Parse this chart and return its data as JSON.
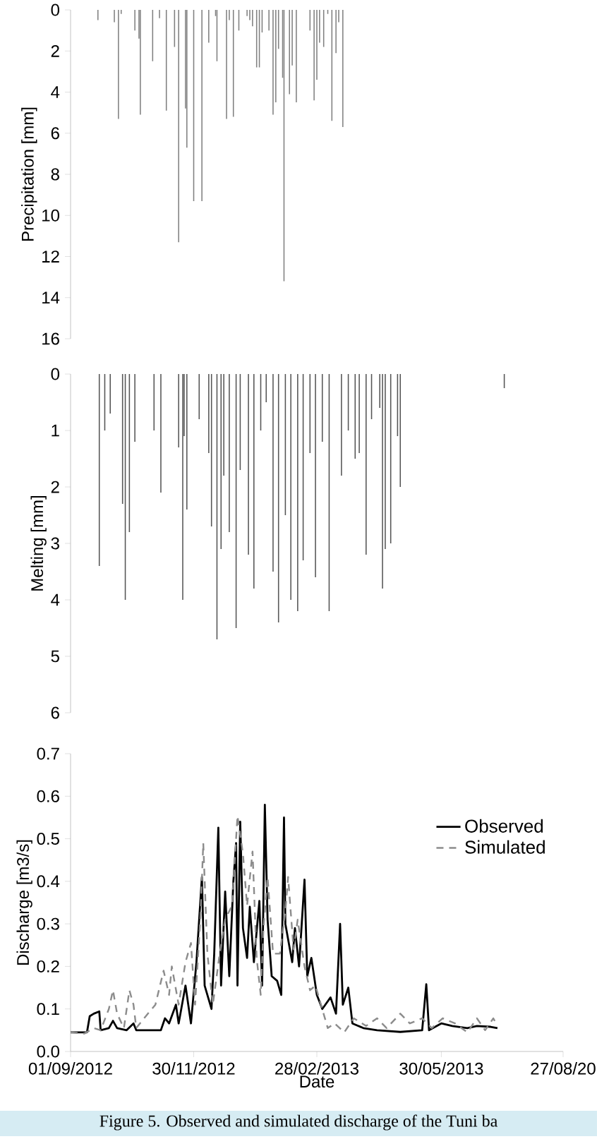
{
  "chart_data": [
    {
      "type": "bar",
      "ylabel": "Precipitation [mm]",
      "color": "#808080",
      "ylim": [
        16,
        0
      ],
      "yticks": [
        0,
        2,
        4,
        6,
        8,
        10,
        12,
        14,
        16
      ],
      "xlim": [
        "2012-09-01",
        "2013-08-27"
      ],
      "tick_labels": "y",
      "x": [
        "2012-09-21",
        "2012-10-03",
        "2012-10-06",
        "2012-10-08",
        "2012-10-18",
        "2012-10-21",
        "2012-10-22",
        "2012-10-31",
        "2012-11-05",
        "2012-11-10",
        "2012-11-16",
        "2012-11-19",
        "2012-11-24",
        "2012-11-25",
        "2012-11-30",
        "2012-12-06",
        "2012-12-11",
        "2012-12-16",
        "2012-12-17",
        "2012-12-24",
        "2012-12-26",
        "2012-12-29",
        "2013-01-02",
        "2013-01-08",
        "2013-01-10",
        "2013-01-12",
        "2013-01-15",
        "2013-01-17",
        "2013-01-19",
        "2013-01-24",
        "2013-01-27",
        "2013-01-29",
        "2013-01-31",
        "2013-02-03",
        "2013-02-04",
        "2013-02-08",
        "2013-02-10",
        "2013-02-13",
        "2013-02-23",
        "2013-02-26",
        "2013-02-28",
        "2013-03-02",
        "2013-03-05",
        "2013-03-08",
        "2013-03-11",
        "2013-03-14",
        "2013-03-16",
        "2013-03-19"
      ],
      "values": [
        0.5,
        0.6,
        5.3,
        0.2,
        1.0,
        1.4,
        5.1,
        2.5,
        0.4,
        4.9,
        1.8,
        11.3,
        4.8,
        6.7,
        9.3,
        9.3,
        1.6,
        0.3,
        2.5,
        5.3,
        0.5,
        5.2,
        1.0,
        0.3,
        0.5,
        0.8,
        2.8,
        2.8,
        1.1,
        1.0,
        5.1,
        4.5,
        1.9,
        3.3,
        13.2,
        4.1,
        2.7,
        4.5,
        1.0,
        4.4,
        3.4,
        1.6,
        1.8,
        0.2,
        5.4,
        2.1,
        0.6,
        5.7
      ]
    },
    {
      "type": "bar",
      "ylabel": "Melting [mm]",
      "color": "#555555",
      "ylim": [
        6,
        0
      ],
      "yticks": [
        0,
        1,
        2,
        3,
        4,
        5,
        6
      ],
      "xlim": [
        "2012-09-01",
        "2013-08-27"
      ],
      "tick_labels": "y",
      "x": [
        "2012-09-22",
        "2012-09-26",
        "2012-09-30",
        "2012-10-09",
        "2012-10-11",
        "2012-10-14",
        "2012-10-18",
        "2012-11-01",
        "2012-11-06",
        "2012-11-19",
        "2012-11-22",
        "2012-11-23",
        "2012-11-25",
        "2012-12-04",
        "2012-12-11",
        "2012-12-13",
        "2012-12-17",
        "2012-12-20",
        "2012-12-22",
        "2012-12-26",
        "2012-12-31",
        "2013-01-03",
        "2013-01-09",
        "2013-01-13",
        "2013-01-18",
        "2013-01-22",
        "2013-01-27",
        "2013-01-31",
        "2013-02-05",
        "2013-02-09",
        "2013-02-14",
        "2013-02-18",
        "2013-02-23",
        "2013-02-27",
        "2013-03-04",
        "2013-03-09",
        "2013-03-18",
        "2013-03-23",
        "2013-03-28",
        "2013-03-31",
        "2013-04-05",
        "2013-04-09",
        "2013-04-15",
        "2013-04-17",
        "2013-04-19",
        "2013-04-23",
        "2013-04-28",
        "2013-04-30",
        "2013-07-15"
      ],
      "values": [
        3.4,
        1.0,
        0.7,
        2.3,
        4.0,
        2.8,
        1.2,
        1.0,
        2.1,
        1.3,
        4.0,
        1.1,
        2.4,
        0.8,
        1.4,
        2.7,
        4.7,
        3.1,
        1.8,
        2.8,
        4.5,
        1.7,
        3.2,
        3.8,
        1.0,
        0.5,
        3.5,
        4.4,
        2.5,
        4.0,
        4.2,
        3.3,
        1.4,
        3.6,
        1.2,
        4.2,
        1.8,
        1.0,
        1.5,
        1.4,
        3.2,
        0.8,
        0.6,
        3.8,
        3.1,
        3.0,
        1.1,
        2.0,
        0.25
      ]
    },
    {
      "type": "line",
      "xlabel": "Date",
      "ylabel": "Discharge [m3/s]",
      "ylim": [
        0,
        0.7
      ],
      "yticks": [
        {
          "value": 0,
          "label": "0.0"
        },
        0.1,
        0.2,
        0.3,
        0.4,
        0.5,
        0.6,
        0.7
      ],
      "xlim": [
        "2012-09-01",
        "2013-08-27"
      ],
      "xticks": [
        {
          "value": "2012-09-01",
          "label": "01/09/2012"
        },
        {
          "value": "2012-11-30",
          "label": "30/11/2012"
        },
        {
          "value": "2013-02-28",
          "label": "28/02/2013"
        },
        {
          "value": "2013-05-30",
          "label": "30/05/2013"
        },
        {
          "value": "2013-08-27",
          "label": "27/08/20"
        }
      ],
      "legend": "top right",
      "annotations": [
        "Figure 5. Observed and simulated discharge of the Tuni ba"
      ],
      "series": [
        {
          "name": "Observed",
          "color": "#000000",
          "line_style": "solid",
          "x": [
            "2012-09-01",
            "2012-09-13",
            "2012-09-15",
            "2012-09-18",
            "2012-09-22",
            "2012-09-23",
            "2012-09-29",
            "2012-10-02",
            "2012-10-05",
            "2012-10-12",
            "2012-10-17",
            "2012-10-19",
            "2012-11-06",
            "2012-11-09",
            "2012-11-12",
            "2012-11-17",
            "2012-11-19",
            "2012-11-24",
            "2012-11-28",
            "2012-12-02",
            "2012-12-06",
            "2012-12-08",
            "2012-12-13",
            "2012-12-15",
            "2012-12-18",
            "2012-12-20",
            "2012-12-23",
            "2012-12-26",
            "2012-12-29",
            "2012-12-31",
            "2013-01-01",
            "2013-01-03",
            "2013-01-05",
            "2013-01-08",
            "2013-01-10",
            "2013-01-13",
            "2013-01-17",
            "2013-01-19",
            "2013-01-21",
            "2013-01-23",
            "2013-01-26",
            "2013-01-30",
            "2013-02-02",
            "2013-02-04",
            "2013-02-05",
            "2013-02-10",
            "2013-02-12",
            "2013-02-15",
            "2013-02-19",
            "2013-02-21",
            "2013-02-24",
            "2013-02-28",
            "2013-03-04",
            "2013-03-10",
            "2013-03-14",
            "2013-03-17",
            "2013-03-19",
            "2013-03-23",
            "2013-03-26",
            "2013-04-03",
            "2013-04-13",
            "2013-04-30",
            "2013-05-16",
            "2013-05-19",
            "2013-05-21",
            "2013-05-30",
            "2013-06-07",
            "2013-06-18",
            "2013-06-25",
            "2013-07-05",
            "2013-07-10"
          ],
          "values": [
            0.045,
            0.045,
            0.083,
            0.089,
            0.094,
            0.05,
            0.055,
            0.072,
            0.055,
            0.05,
            0.066,
            0.05,
            0.05,
            0.078,
            0.066,
            0.11,
            0.066,
            0.155,
            0.066,
            0.21,
            0.41,
            0.155,
            0.1,
            0.23,
            0.526,
            0.155,
            0.376,
            0.177,
            0.4,
            0.49,
            0.155,
            0.54,
            0.29,
            0.22,
            0.34,
            0.21,
            0.354,
            0.155,
            0.58,
            0.31,
            0.177,
            0.166,
            0.133,
            0.55,
            0.3,
            0.21,
            0.29,
            0.2,
            0.404,
            0.177,
            0.22,
            0.133,
            0.1,
            0.127,
            0.089,
            0.3,
            0.11,
            0.15,
            0.066,
            0.055,
            0.05,
            0.046,
            0.05,
            0.158,
            0.05,
            0.066,
            0.06,
            0.055,
            0.06,
            0.058,
            0.055
          ]
        },
        {
          "name": "Simulated",
          "color": "#8c8c8c",
          "line_style": "dashed",
          "x": [
            "2012-09-01",
            "2012-09-11",
            "2012-09-18",
            "2012-09-23",
            "2012-09-29",
            "2012-10-02",
            "2012-10-05",
            "2012-10-10",
            "2012-10-14",
            "2012-10-17",
            "2012-10-19",
            "2012-10-26",
            "2012-11-02",
            "2012-11-08",
            "2012-11-12",
            "2012-11-14",
            "2012-11-19",
            "2012-11-24",
            "2012-11-28",
            "2012-12-01",
            "2012-12-05",
            "2012-12-07",
            "2012-12-10",
            "2012-12-14",
            "2012-12-19",
            "2012-12-23",
            "2012-12-28",
            "2013-01-01",
            "2013-01-05",
            "2013-01-08",
            "2013-01-12",
            "2013-01-15",
            "2013-01-18",
            "2013-01-20",
            "2013-01-23",
            "2013-01-27",
            "2013-02-01",
            "2013-02-05",
            "2013-02-07",
            "2013-02-11",
            "2013-02-14",
            "2013-02-19",
            "2013-02-23",
            "2013-02-27",
            "2013-03-03",
            "2013-03-08",
            "2013-03-13",
            "2013-03-20",
            "2013-03-27",
            "2013-04-05",
            "2013-04-13",
            "2013-04-20",
            "2013-04-30",
            "2013-05-07",
            "2013-05-16",
            "2013-05-23",
            "2013-05-31",
            "2013-06-09",
            "2013-06-18",
            "2013-06-25",
            "2013-07-01",
            "2013-07-07",
            "2013-07-10"
          ],
          "values": [
            0.045,
            0.042,
            0.055,
            0.05,
            0.1,
            0.144,
            0.089,
            0.055,
            0.144,
            0.11,
            0.055,
            0.083,
            0.11,
            0.19,
            0.133,
            0.2,
            0.11,
            0.21,
            0.255,
            0.11,
            0.32,
            0.49,
            0.23,
            0.11,
            0.23,
            0.31,
            0.343,
            0.554,
            0.465,
            0.343,
            0.47,
            0.22,
            0.133,
            0.29,
            0.41,
            0.23,
            0.23,
            0.33,
            0.41,
            0.24,
            0.31,
            0.2,
            0.144,
            0.155,
            0.11,
            0.055,
            0.066,
            0.045,
            0.078,
            0.06,
            0.078,
            0.055,
            0.089,
            0.066,
            0.078,
            0.055,
            0.078,
            0.066,
            0.045,
            0.078,
            0.05,
            0.078,
            0.06
          ]
        }
      ]
    }
  ]
}
